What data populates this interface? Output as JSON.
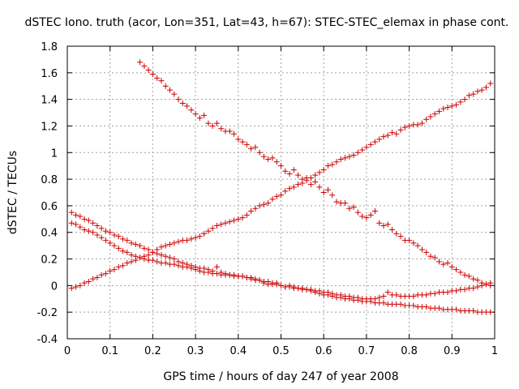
{
  "chart_data": {
    "type": "scatter",
    "title": "dSTEC Iono. truth (acor, Lon=351, Lat=43, h=67): STEC-STEC_elemax in phase cont.",
    "xlabel": "GPS time / hours of day 247 of year 2008",
    "ylabel": "dSTEC  / TECUs",
    "xlim": [
      0,
      1
    ],
    "ylim": [
      -0.4,
      1.8
    ],
    "xticks": [
      "0",
      "0.1",
      "0.2",
      "0.3",
      "0.4",
      "0.5",
      "0.6",
      "0.7",
      "0.8",
      "0.9",
      "1"
    ],
    "yticks": [
      "-0.4",
      "-0.2",
      "0",
      "0.2",
      "0.4",
      "0.6",
      "0.8",
      "1",
      "1.2",
      "1.4",
      "1.6",
      "1.8"
    ],
    "grid": true,
    "marker": "plus",
    "color": "#cc0000",
    "series": [
      {
        "x": [
          0.17,
          0.18,
          0.19,
          0.2,
          0.21,
          0.22,
          0.23,
          0.24,
          0.25,
          0.26,
          0.27,
          0.28,
          0.29,
          0.3,
          0.31,
          0.32,
          0.33,
          0.34,
          0.35,
          0.36,
          0.37,
          0.38,
          0.39,
          0.4,
          0.41,
          0.42,
          0.43,
          0.44,
          0.45,
          0.46,
          0.47,
          0.48,
          0.49,
          0.5,
          0.51,
          0.52,
          0.53,
          0.54,
          0.55,
          0.56,
          0.57,
          0.58,
          0.59,
          0.6,
          0.61,
          0.62,
          0.63,
          0.64,
          0.65,
          0.66,
          0.67,
          0.68,
          0.69,
          0.7,
          0.71,
          0.72,
          0.73,
          0.74,
          0.75,
          0.76,
          0.77,
          0.78,
          0.79,
          0.8,
          0.81,
          0.82,
          0.83,
          0.84,
          0.85,
          0.86,
          0.87,
          0.88,
          0.89,
          0.9,
          0.91,
          0.92,
          0.93,
          0.94,
          0.95,
          0.96,
          0.97,
          0.98,
          0.99
        ],
        "y": [
          1.68,
          1.65,
          1.62,
          1.59,
          1.56,
          1.54,
          1.5,
          1.47,
          1.44,
          1.4,
          1.37,
          1.35,
          1.32,
          1.29,
          1.26,
          1.28,
          1.22,
          1.2,
          1.22,
          1.18,
          1.16,
          1.16,
          1.14,
          1.1,
          1.08,
          1.06,
          1.03,
          1.04,
          1.0,
          0.97,
          0.95,
          0.96,
          0.93,
          0.9,
          0.86,
          0.84,
          0.87,
          0.83,
          0.8,
          0.81,
          0.76,
          0.78,
          0.74,
          0.7,
          0.72,
          0.68,
          0.63,
          0.62,
          0.62,
          0.58,
          0.59,
          0.55,
          0.52,
          0.51,
          0.53,
          0.56,
          0.47,
          0.45,
          0.46,
          0.42,
          0.39,
          0.37,
          0.34,
          0.34,
          0.32,
          0.3,
          0.27,
          0.25,
          0.22,
          0.21,
          0.18,
          0.16,
          0.17,
          0.14,
          0.12,
          0.1,
          0.08,
          0.07,
          0.05,
          0.04,
          0.02,
          0.01,
          0.0
        ]
      },
      {
        "x": [
          0.01,
          0.02,
          0.03,
          0.04,
          0.05,
          0.06,
          0.07,
          0.08,
          0.09,
          0.1,
          0.11,
          0.12,
          0.13,
          0.14,
          0.15,
          0.16,
          0.17,
          0.18,
          0.19,
          0.2,
          0.21,
          0.22,
          0.23,
          0.24,
          0.25,
          0.26,
          0.27,
          0.28,
          0.29,
          0.3,
          0.31,
          0.32,
          0.33,
          0.34,
          0.35,
          0.36,
          0.37,
          0.38,
          0.39,
          0.4,
          0.41,
          0.42,
          0.43,
          0.44,
          0.45,
          0.46,
          0.47,
          0.48,
          0.49,
          0.5,
          0.51,
          0.52,
          0.53,
          0.54,
          0.55,
          0.56,
          0.57,
          0.58,
          0.59,
          0.6,
          0.61,
          0.62,
          0.63,
          0.64,
          0.65,
          0.66,
          0.67,
          0.68,
          0.69,
          0.7,
          0.71,
          0.72,
          0.73,
          0.74,
          0.75,
          0.76,
          0.77,
          0.78,
          0.79,
          0.8,
          0.81,
          0.82,
          0.83,
          0.84,
          0.85,
          0.86,
          0.87,
          0.88,
          0.89,
          0.9,
          0.91,
          0.92,
          0.93,
          0.94,
          0.95,
          0.96,
          0.97,
          0.98,
          0.99
        ],
        "y": [
          -0.02,
          -0.01,
          0.0,
          0.02,
          0.03,
          0.05,
          0.06,
          0.08,
          0.09,
          0.11,
          0.12,
          0.14,
          0.15,
          0.17,
          0.18,
          0.19,
          0.21,
          0.22,
          0.23,
          0.25,
          0.27,
          0.29,
          0.3,
          0.31,
          0.32,
          0.33,
          0.34,
          0.34,
          0.35,
          0.36,
          0.37,
          0.39,
          0.41,
          0.43,
          0.45,
          0.46,
          0.47,
          0.48,
          0.49,
          0.5,
          0.51,
          0.53,
          0.56,
          0.58,
          0.6,
          0.61,
          0.62,
          0.65,
          0.67,
          0.68,
          0.71,
          0.73,
          0.74,
          0.76,
          0.77,
          0.79,
          0.81,
          0.83,
          0.85,
          0.87,
          0.9,
          0.91,
          0.93,
          0.95,
          0.96,
          0.97,
          0.98,
          1.0,
          1.02,
          1.04,
          1.06,
          1.08,
          1.1,
          1.12,
          1.13,
          1.15,
          1.14,
          1.17,
          1.19,
          1.2,
          1.21,
          1.21,
          1.22,
          1.25,
          1.27,
          1.29,
          1.31,
          1.33,
          1.34,
          1.35,
          1.36,
          1.38,
          1.4,
          1.43,
          1.44,
          1.46,
          1.47,
          1.49,
          1.52
        ]
      },
      {
        "x": [
          0.01,
          0.02,
          0.03,
          0.04,
          0.05,
          0.06,
          0.07,
          0.08,
          0.09,
          0.1,
          0.11,
          0.12,
          0.13,
          0.14,
          0.15,
          0.16,
          0.17,
          0.18,
          0.19,
          0.2,
          0.21,
          0.22,
          0.23,
          0.24,
          0.25,
          0.26,
          0.27,
          0.28,
          0.29,
          0.3,
          0.31,
          0.32,
          0.33,
          0.34,
          0.35,
          0.36,
          0.37,
          0.38,
          0.39,
          0.4,
          0.41,
          0.42,
          0.43,
          0.44,
          0.45,
          0.46,
          0.47,
          0.48,
          0.49,
          0.5,
          0.51,
          0.52,
          0.53,
          0.54,
          0.55,
          0.56,
          0.57,
          0.58,
          0.59,
          0.6,
          0.61,
          0.62,
          0.63,
          0.64,
          0.65,
          0.66,
          0.67,
          0.68,
          0.69,
          0.7,
          0.71,
          0.72,
          0.73,
          0.74,
          0.75,
          0.76,
          0.77,
          0.78,
          0.79,
          0.8,
          0.81,
          0.82,
          0.83,
          0.84,
          0.85,
          0.86,
          0.87,
          0.88,
          0.89,
          0.9,
          0.91,
          0.92,
          0.93,
          0.94,
          0.95,
          0.96,
          0.97,
          0.98,
          0.99
        ],
        "y": [
          0.55,
          0.53,
          0.52,
          0.5,
          0.49,
          0.47,
          0.45,
          0.43,
          0.41,
          0.4,
          0.38,
          0.37,
          0.35,
          0.34,
          0.32,
          0.31,
          0.3,
          0.28,
          0.27,
          0.25,
          0.24,
          0.23,
          0.22,
          0.21,
          0.2,
          0.18,
          0.17,
          0.16,
          0.15,
          0.14,
          0.13,
          0.13,
          0.12,
          0.11,
          0.14,
          0.1,
          0.09,
          0.08,
          0.08,
          0.07,
          0.07,
          0.06,
          0.05,
          0.04,
          0.04,
          0.03,
          0.03,
          0.02,
          0.01,
          0.0,
          -0.01,
          0.0,
          -0.01,
          -0.02,
          -0.03,
          -0.03,
          -0.04,
          -0.05,
          -0.06,
          -0.07,
          -0.07,
          -0.08,
          -0.09,
          -0.09,
          -0.1,
          -0.1,
          -0.11,
          -0.11,
          -0.12,
          -0.12,
          -0.12,
          -0.13,
          -0.13,
          -0.13,
          -0.14,
          -0.14,
          -0.14,
          -0.14,
          -0.15,
          -0.15,
          -0.15,
          -0.16,
          -0.16,
          -0.16,
          -0.17,
          -0.17,
          -0.17,
          -0.18,
          -0.18,
          -0.18,
          -0.18,
          -0.19,
          -0.19,
          -0.19,
          -0.19,
          -0.2,
          -0.2,
          -0.2,
          -0.2
        ]
      },
      {
        "x": [
          0.01,
          0.02,
          0.03,
          0.04,
          0.05,
          0.06,
          0.07,
          0.08,
          0.09,
          0.1,
          0.11,
          0.12,
          0.13,
          0.14,
          0.15,
          0.16,
          0.17,
          0.18,
          0.19,
          0.2,
          0.21,
          0.22,
          0.23,
          0.24,
          0.25,
          0.26,
          0.27,
          0.28,
          0.29,
          0.3,
          0.31,
          0.32,
          0.33,
          0.34,
          0.35,
          0.36,
          0.37,
          0.38,
          0.39,
          0.4,
          0.41,
          0.42,
          0.43,
          0.44,
          0.45,
          0.46,
          0.47,
          0.48,
          0.49,
          0.5,
          0.51,
          0.52,
          0.53,
          0.54,
          0.55,
          0.56,
          0.57,
          0.58,
          0.59,
          0.6,
          0.61,
          0.62,
          0.63,
          0.64,
          0.65,
          0.66,
          0.67,
          0.68,
          0.69,
          0.7,
          0.71,
          0.72,
          0.73,
          0.74,
          0.75,
          0.76,
          0.77,
          0.78,
          0.79,
          0.8,
          0.81,
          0.82,
          0.83,
          0.84,
          0.85,
          0.86,
          0.87,
          0.88,
          0.89,
          0.9,
          0.91,
          0.92,
          0.93,
          0.94,
          0.95,
          0.96,
          0.97,
          0.98,
          0.99
        ],
        "y": [
          0.47,
          0.46,
          0.44,
          0.42,
          0.41,
          0.4,
          0.38,
          0.36,
          0.34,
          0.32,
          0.3,
          0.28,
          0.26,
          0.25,
          0.23,
          0.22,
          0.21,
          0.2,
          0.19,
          0.19,
          0.18,
          0.17,
          0.17,
          0.16,
          0.16,
          0.15,
          0.14,
          0.14,
          0.13,
          0.12,
          0.11,
          0.1,
          0.1,
          0.09,
          0.09,
          0.08,
          0.08,
          0.08,
          0.07,
          0.07,
          0.07,
          0.06,
          0.06,
          0.05,
          0.04,
          0.02,
          0.01,
          0.01,
          0.02,
          0.0,
          -0.01,
          -0.01,
          -0.02,
          -0.02,
          -0.02,
          -0.03,
          -0.03,
          -0.04,
          -0.04,
          -0.05,
          -0.05,
          -0.06,
          -0.07,
          -0.07,
          -0.08,
          -0.08,
          -0.09,
          -0.09,
          -0.1,
          -0.1,
          -0.1,
          -0.1,
          -0.09,
          -0.08,
          -0.05,
          -0.07,
          -0.07,
          -0.08,
          -0.08,
          -0.08,
          -0.08,
          -0.07,
          -0.07,
          -0.07,
          -0.06,
          -0.06,
          -0.05,
          -0.05,
          -0.05,
          -0.04,
          -0.04,
          -0.03,
          -0.03,
          -0.02,
          -0.02,
          -0.01,
          0.0,
          0.01,
          0.02
        ]
      }
    ]
  }
}
